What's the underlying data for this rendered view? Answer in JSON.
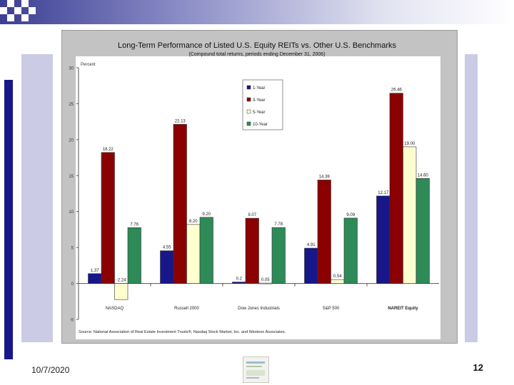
{
  "slide": {
    "date": "10/7/2020",
    "page_number": "12"
  },
  "chart_data": {
    "type": "bar",
    "title": "Long-Term Performance of Listed U.S. Equity REITs vs. Other U.S. Benchmarks",
    "subtitle": "(Compound total returns, periods ending December 31, 2006)",
    "ylabel": "Percent",
    "ylim": [
      -5,
      30
    ],
    "yticks": [
      -5,
      0,
      5,
      10,
      15,
      20,
      25,
      30
    ],
    "categories": [
      "NASDAQ",
      "Russell 2000",
      "Dow Jones Industrials",
      "S&P 500",
      "NAREIT Equity"
    ],
    "series": [
      {
        "name": "1-Year",
        "color": "#17178a",
        "values": [
          1.37,
          4.55,
          0.2,
          4.91,
          12.17
        ],
        "labels": [
          "1.37",
          "4.55",
          "0.2",
          "4.91",
          "12.17"
        ]
      },
      {
        "name": "3-Year",
        "color": "#8b0000",
        "values": [
          18.22,
          22.13,
          9.07,
          14.39,
          26.46
        ],
        "labels": [
          "18.22",
          "22.13",
          "9.07",
          "14.39",
          "26.46"
        ]
      },
      {
        "name": "5-Year",
        "color": "#ffffd0",
        "values": [
          -2.24,
          8.2,
          0.05,
          0.54,
          19.0
        ],
        "labels": [
          "-2.24",
          "8.20",
          "0.05",
          "0.54",
          "19.00"
        ]
      },
      {
        "name": "10-Year",
        "color": "#2e8b57",
        "values": [
          7.76,
          9.2,
          7.78,
          9.09,
          14.6
        ],
        "labels": [
          "7.76",
          "9.20",
          "7.78",
          "9.09",
          "14.60"
        ]
      }
    ],
    "source": "Source: National Association of Real Estate Investment Trusts®, Nasdaq Stock Market, Inc. and Ibbotson Associates.",
    "legend_position": "top-center"
  }
}
